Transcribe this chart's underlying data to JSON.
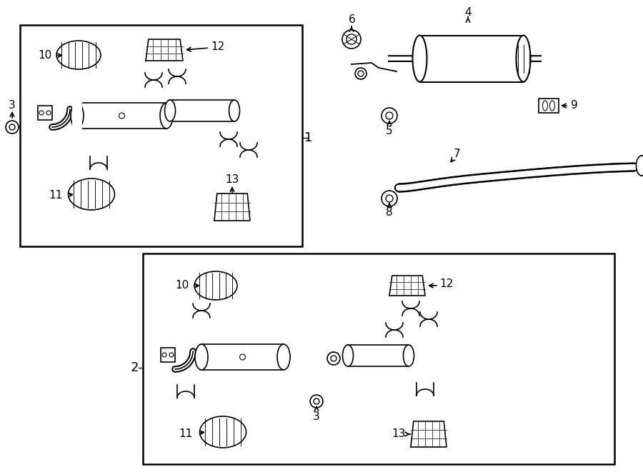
{
  "bg_color": "#ffffff",
  "line_color": "#000000",
  "lw": 1.2
}
